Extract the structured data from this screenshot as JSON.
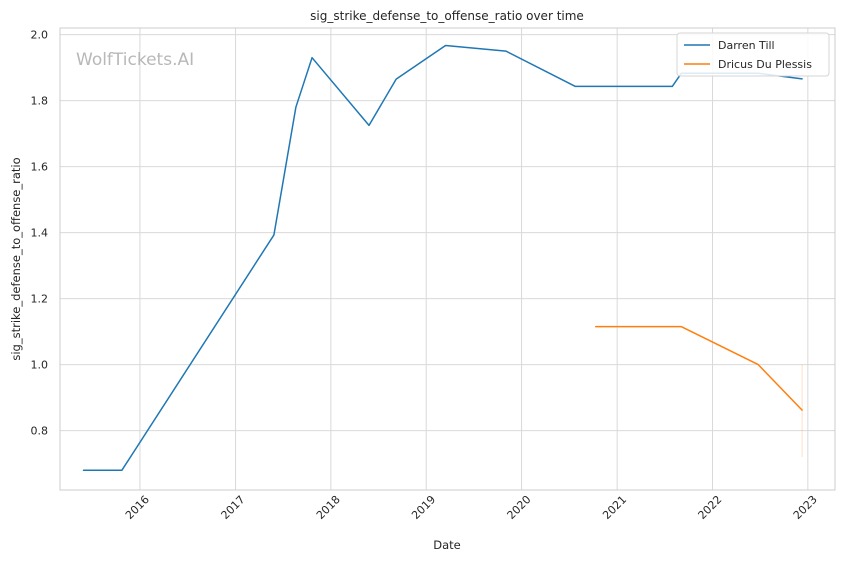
{
  "watermark": "WolfTickets.AI",
  "chart_data": {
    "type": "line",
    "title": "sig_strike_defense_to_offense_ratio over time",
    "xlabel": "Date",
    "ylabel": "sig_strike_defense_to_offense_ratio",
    "xlim": [
      "2015-03-01",
      "2023-04-15"
    ],
    "ylim": [
      0.62,
      2.02
    ],
    "x_ticks": [
      {
        "date": "2016-01-01",
        "label": "2016"
      },
      {
        "date": "2017-01-01",
        "label": "2017"
      },
      {
        "date": "2018-01-01",
        "label": "2018"
      },
      {
        "date": "2019-01-01",
        "label": "2019"
      },
      {
        "date": "2020-01-01",
        "label": "2020"
      },
      {
        "date": "2021-01-01",
        "label": "2021"
      },
      {
        "date": "2022-01-01",
        "label": "2022"
      },
      {
        "date": "2023-01-01",
        "label": "2023"
      }
    ],
    "y_ticks": [
      {
        "value": 0.8,
        "label": "0.8"
      },
      {
        "value": 1.0,
        "label": "1.0"
      },
      {
        "value": 1.2,
        "label": "1.2"
      },
      {
        "value": 1.4,
        "label": "1.4"
      },
      {
        "value": 1.6,
        "label": "1.6"
      },
      {
        "value": 1.8,
        "label": "1.8"
      },
      {
        "value": 2.0,
        "label": "2.0"
      }
    ],
    "grid": true,
    "legend_position": "top-right",
    "series": [
      {
        "name": "Darren Till",
        "color": "#1f77b4",
        "points": [
          {
            "x": "2015-05-30",
            "y": 0.68
          },
          {
            "x": "2015-10-24",
            "y": 0.68
          },
          {
            "x": "2017-05-28",
            "y": 1.393
          },
          {
            "x": "2017-08-20",
            "y": 1.78
          },
          {
            "x": "2017-10-21",
            "y": 1.93
          },
          {
            "x": "2018-05-27",
            "y": 1.725
          },
          {
            "x": "2018-09-08",
            "y": 1.865
          },
          {
            "x": "2019-03-16",
            "y": 1.967
          },
          {
            "x": "2019-11-02",
            "y": 1.95
          },
          {
            "x": "2020-07-25",
            "y": 1.843
          },
          {
            "x": "2021-07-31",
            "y": 1.843
          },
          {
            "x": "2021-09-04",
            "y": 1.883
          },
          {
            "x": "2022-06-25",
            "y": 1.883
          },
          {
            "x": "2022-12-10",
            "y": 1.866
          }
        ]
      },
      {
        "name": "Dricus Du Plessis",
        "color": "#ff7f0e",
        "points": [
          {
            "x": "2020-10-11",
            "y": 1.115
          },
          {
            "x": "2021-09-04",
            "y": 1.115
          },
          {
            "x": "2022-06-25",
            "y": 1.0
          },
          {
            "x": "2022-12-10",
            "y": 0.862
          }
        ],
        "interval": {
          "x": "2022-12-10",
          "low": 0.72,
          "high": 1.0
        }
      }
    ]
  }
}
